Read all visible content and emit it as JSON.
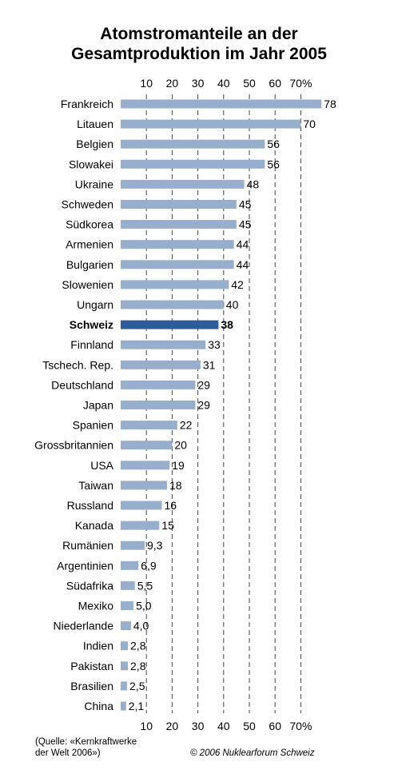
{
  "chart_data": {
    "type": "bar",
    "orientation": "horizontal",
    "title_lines": [
      "Atomstromanteile an der",
      "Gesamtproduktion im Jahr 2005"
    ],
    "x_ticks": [
      "10",
      "20",
      "30",
      "40",
      "50",
      "60",
      "70%"
    ],
    "x_tick_values": [
      10,
      20,
      30,
      40,
      50,
      60,
      70
    ],
    "xlim": [
      0,
      80
    ],
    "grid": "vertical dashed",
    "highlight_category": "Schweiz",
    "colors": {
      "bar": "#98aecd",
      "highlight": "#2e5c9a",
      "grid": "#444444"
    },
    "categories": [
      "Frankreich",
      "Litauen",
      "Belgien",
      "Slowakei",
      "Ukraine",
      "Schweden",
      "Südkorea",
      "Armenien",
      "Bulgarien",
      "Slowenien",
      "Ungarn",
      "Schweiz",
      "Finnland",
      "Tschech. Rep.",
      "Deutschland",
      "Japan",
      "Spanien",
      "Grossbritannien",
      "USA",
      "Taiwan",
      "Russland",
      "Kanada",
      "Rumänien",
      "Argentinien",
      "Südafrika",
      "Mexiko",
      "Niederlande",
      "Indien",
      "Pakistan",
      "Brasilien",
      "China"
    ],
    "values": [
      78,
      70,
      56,
      56,
      48,
      45,
      45,
      44,
      44,
      42,
      40,
      38,
      33,
      31,
      29,
      29,
      22,
      20,
      19,
      18,
      16,
      15,
      9.3,
      6.9,
      5.5,
      5.0,
      4.0,
      2.8,
      2.8,
      2.5,
      2.1
    ],
    "value_labels": [
      "78",
      "70",
      "56",
      "56",
      "48",
      "45",
      "45",
      "44",
      "44",
      "42",
      "40",
      "38",
      "33",
      "31",
      "29",
      "29",
      "22",
      "20",
      "19",
      "18",
      "16",
      "15",
      "9,3",
      "6,9",
      "5,5",
      "5,0",
      "4,0",
      "2,8",
      "2,8",
      "2,5",
      "2,1"
    ]
  },
  "footer": {
    "source_lines": [
      "(Quelle: «Kernkraftwerke",
      "der Welt 2006»)"
    ],
    "copyright": "© 2006 Nuklearforum Schweiz"
  }
}
